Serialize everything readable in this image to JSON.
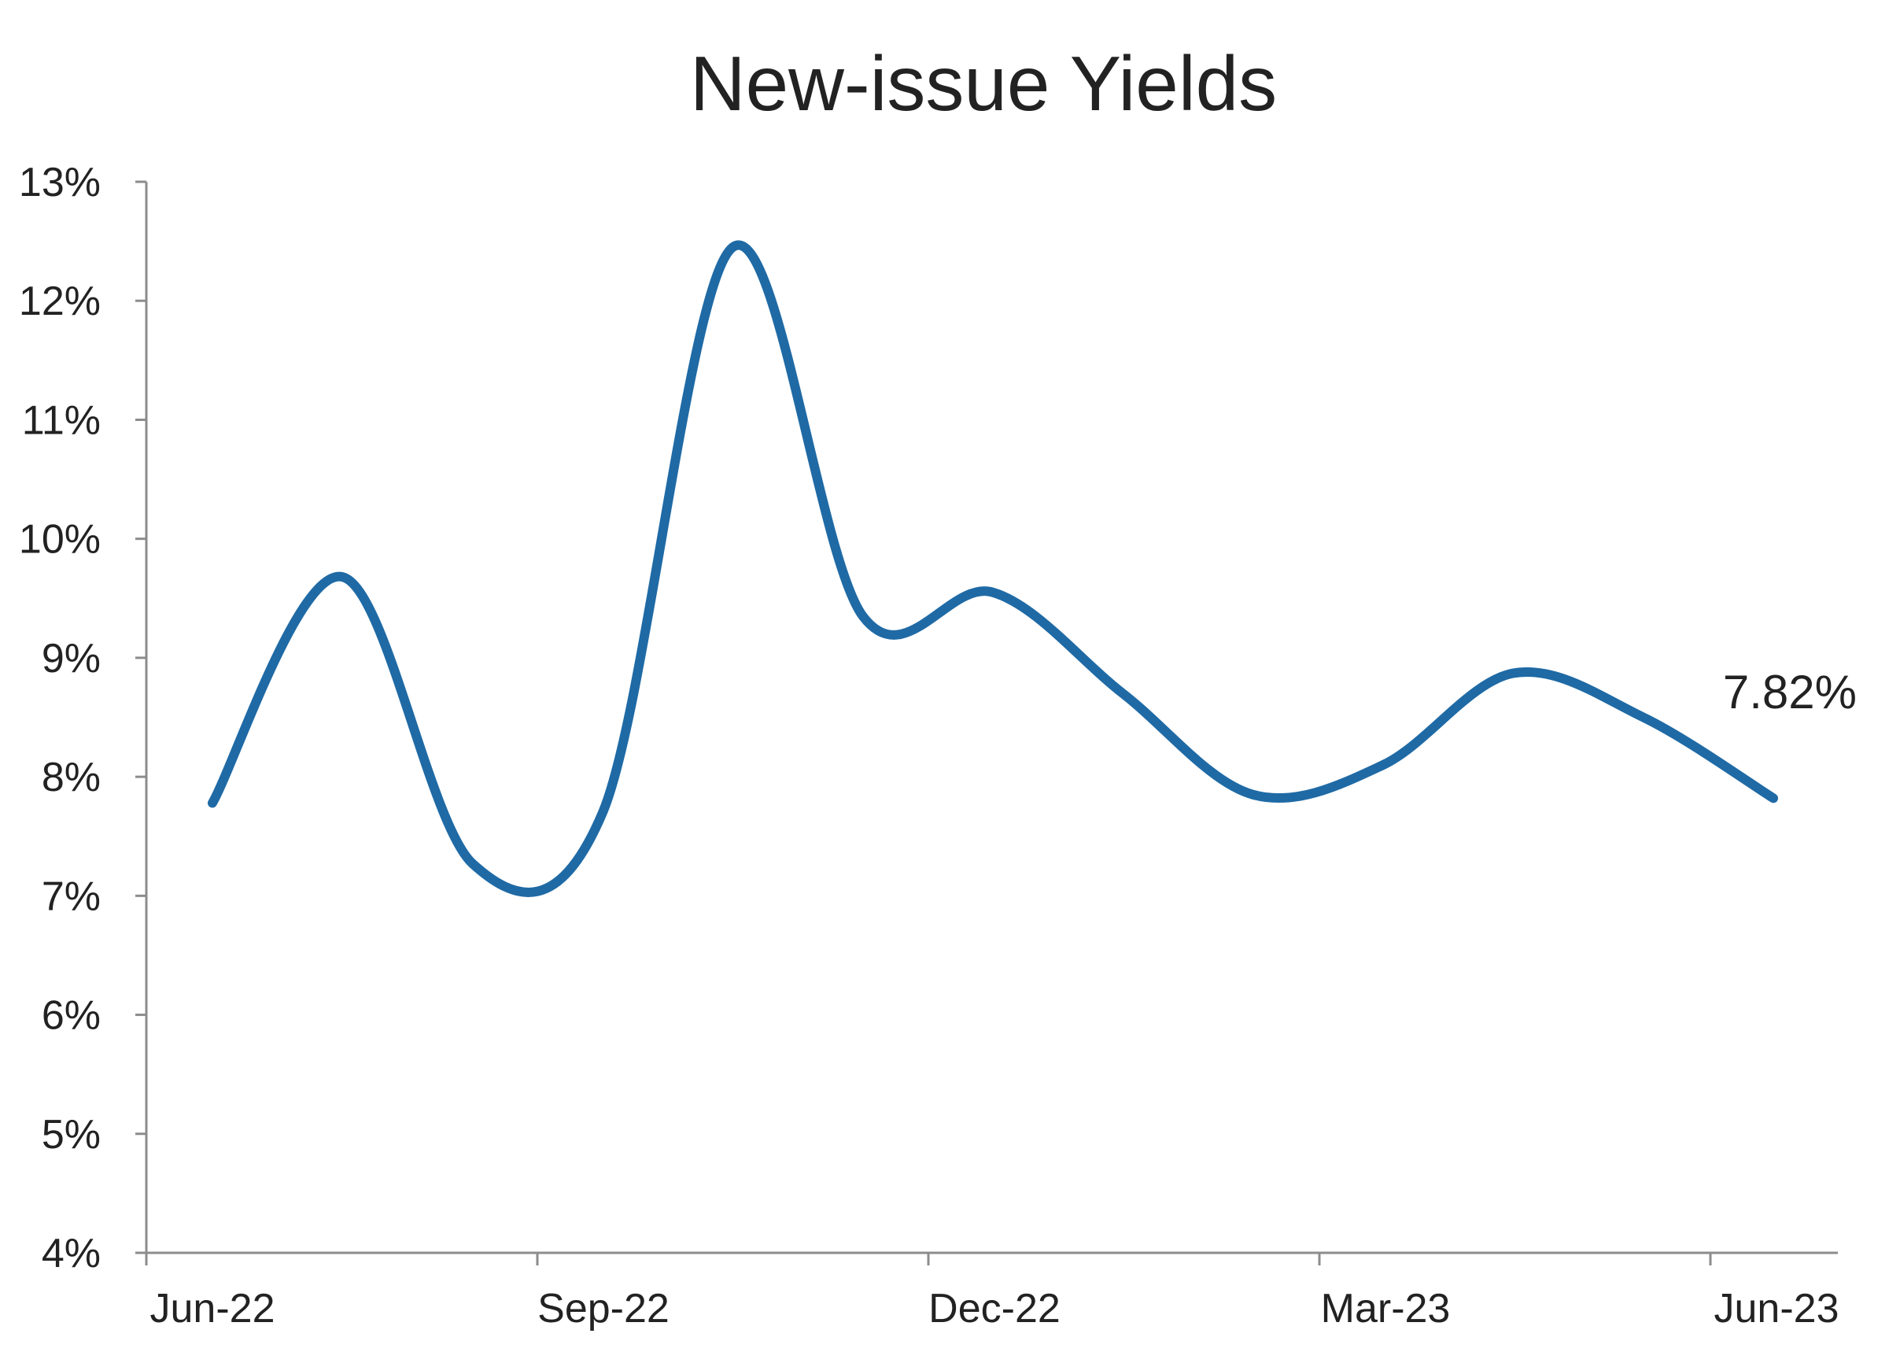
{
  "chart_data": {
    "type": "line",
    "title": "New-issue Yields",
    "xlabel": "",
    "ylabel": "",
    "ylim": [
      4,
      13
    ],
    "y_ticks": [
      "13%",
      "12%",
      "11%",
      "10%",
      "9%",
      "8%",
      "7%",
      "6%",
      "5%",
      "4%"
    ],
    "x_ticks": [
      "Jun-22",
      "Sep-22",
      "Dec-22",
      "Mar-23",
      "Jun-23"
    ],
    "grid": false,
    "color": "#1f6aa5",
    "x": [
      "Jun-22",
      "Jul-22",
      "Aug-22",
      "Sep-22",
      "Oct-22",
      "Nov-22",
      "Dec-22",
      "Jan-23",
      "Feb-23",
      "Mar-23",
      "Apr-23",
      "May-23",
      "Jun-23"
    ],
    "series": [
      {
        "values": [
          7.78,
          9.68,
          7.27,
          7.7,
          12.45,
          9.35,
          9.55,
          8.7,
          7.85,
          8.1,
          8.87,
          8.5,
          7.82
        ]
      }
    ],
    "end_label": "7.82%"
  }
}
